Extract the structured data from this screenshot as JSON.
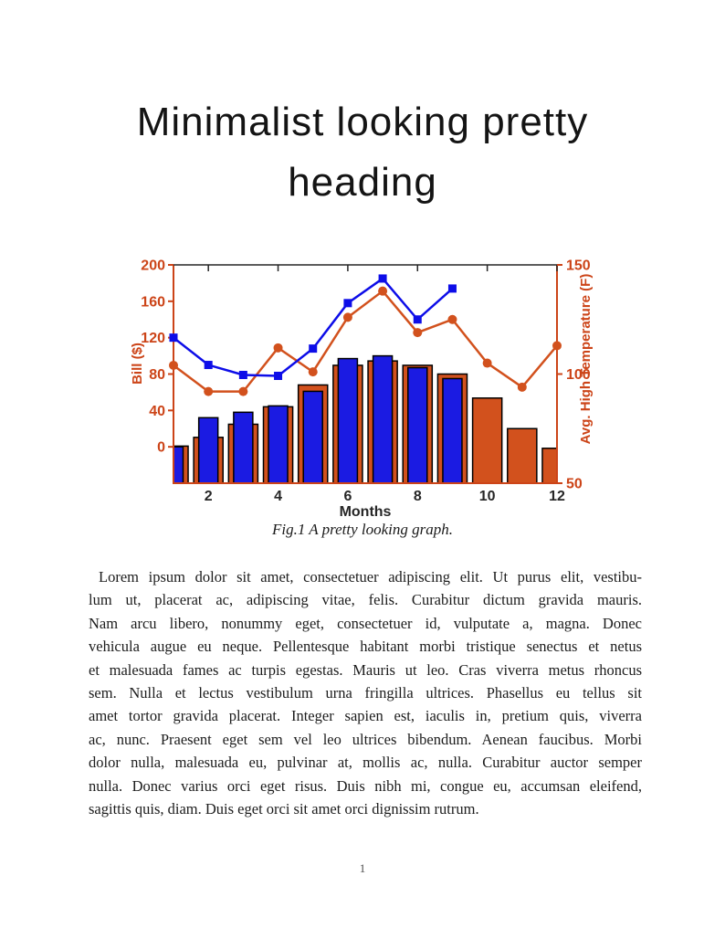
{
  "page": {
    "heading_line1": "Minimalist looking pretty",
    "heading_line2": "heading",
    "caption": "Fig.1 A pretty looking graph.",
    "body_lines": [
      "Lorem ipsum dolor sit amet, consectetuer adipiscing elit.  Ut purus elit, vestibu-",
      "lum ut, placerat ac, adipiscing vitae, felis.  Curabitur dictum gravida mauris.",
      "Nam arcu libero, nonummy eget, consectetuer id, vulputate a, magna.  Donec",
      "vehicula augue eu neque.  Pellentesque habitant morbi tristique senectus et netus",
      "et malesuada fames ac turpis egestas.  Mauris ut leo.  Cras viverra metus rhoncus",
      "sem.  Nulla et lectus vestibulum urna fringilla ultrices.  Phasellus eu tellus sit",
      "amet tortor gravida placerat.  Integer sapien est, iaculis in, pretium quis, viverra",
      "ac, nunc.  Praesent eget sem vel leo ultrices bibendum.  Aenean faucibus.  Morbi",
      "dolor nulla, malesuada eu, pulvinar at, mollis ac, nulla.  Curabitur auctor semper",
      "nulla.  Donec varius orci eget risus.  Duis nibh mi, congue eu, accumsan eleifend,",
      "sagittis quis, diam.  Duis eget orci sit amet orci dignissim rutrum."
    ],
    "page_number": "1"
  },
  "chart_data": {
    "type": "combo-bar-line",
    "title": "",
    "xlabel": "Months",
    "x_ticks": [
      2,
      4,
      6,
      8,
      10,
      12
    ],
    "x_range": [
      1,
      12
    ],
    "months": [
      1,
      2,
      3,
      4,
      5,
      6,
      7,
      8,
      9,
      10,
      11,
      12
    ],
    "frame_color": "#262626",
    "left_axis": {
      "label": "Bill ($)",
      "ticks": [
        0,
        40,
        80,
        120,
        160,
        200
      ],
      "range": [
        -40,
        200
      ],
      "color": "#cc4418"
    },
    "right_axis": {
      "label": "Avg. High Temperature (F)",
      "ticks": [
        50,
        100,
        150
      ],
      "range": [
        50,
        150
      ],
      "color": "#cc4418"
    },
    "series": [
      {
        "name": "temperature-bars",
        "type": "bar",
        "axis": "right",
        "color": "#d2511d",
        "bar_width": 0.84,
        "values": [
          67,
          71,
          77,
          85,
          95,
          104,
          106,
          104,
          100,
          89,
          75,
          66
        ]
      },
      {
        "name": "bill-bars",
        "type": "bar",
        "axis": "left",
        "color": "#1b1be2",
        "bar_width": 0.55,
        "values": [
          0,
          32,
          38,
          45,
          61,
          97,
          100,
          87,
          75,
          null,
          null,
          null
        ]
      },
      {
        "name": "temperature-line",
        "type": "line",
        "axis": "right",
        "marker": "circle",
        "color": "#d2511d",
        "values": [
          104,
          92,
          92,
          112,
          101,
          126,
          138,
          119,
          125,
          105,
          94,
          113
        ]
      },
      {
        "name": "bill-line",
        "type": "line",
        "axis": "left",
        "marker": "square",
        "color": "#0d0de8",
        "values": [
          120,
          90,
          79,
          78,
          108,
          158,
          185,
          140,
          174,
          null,
          null,
          null
        ]
      }
    ]
  }
}
